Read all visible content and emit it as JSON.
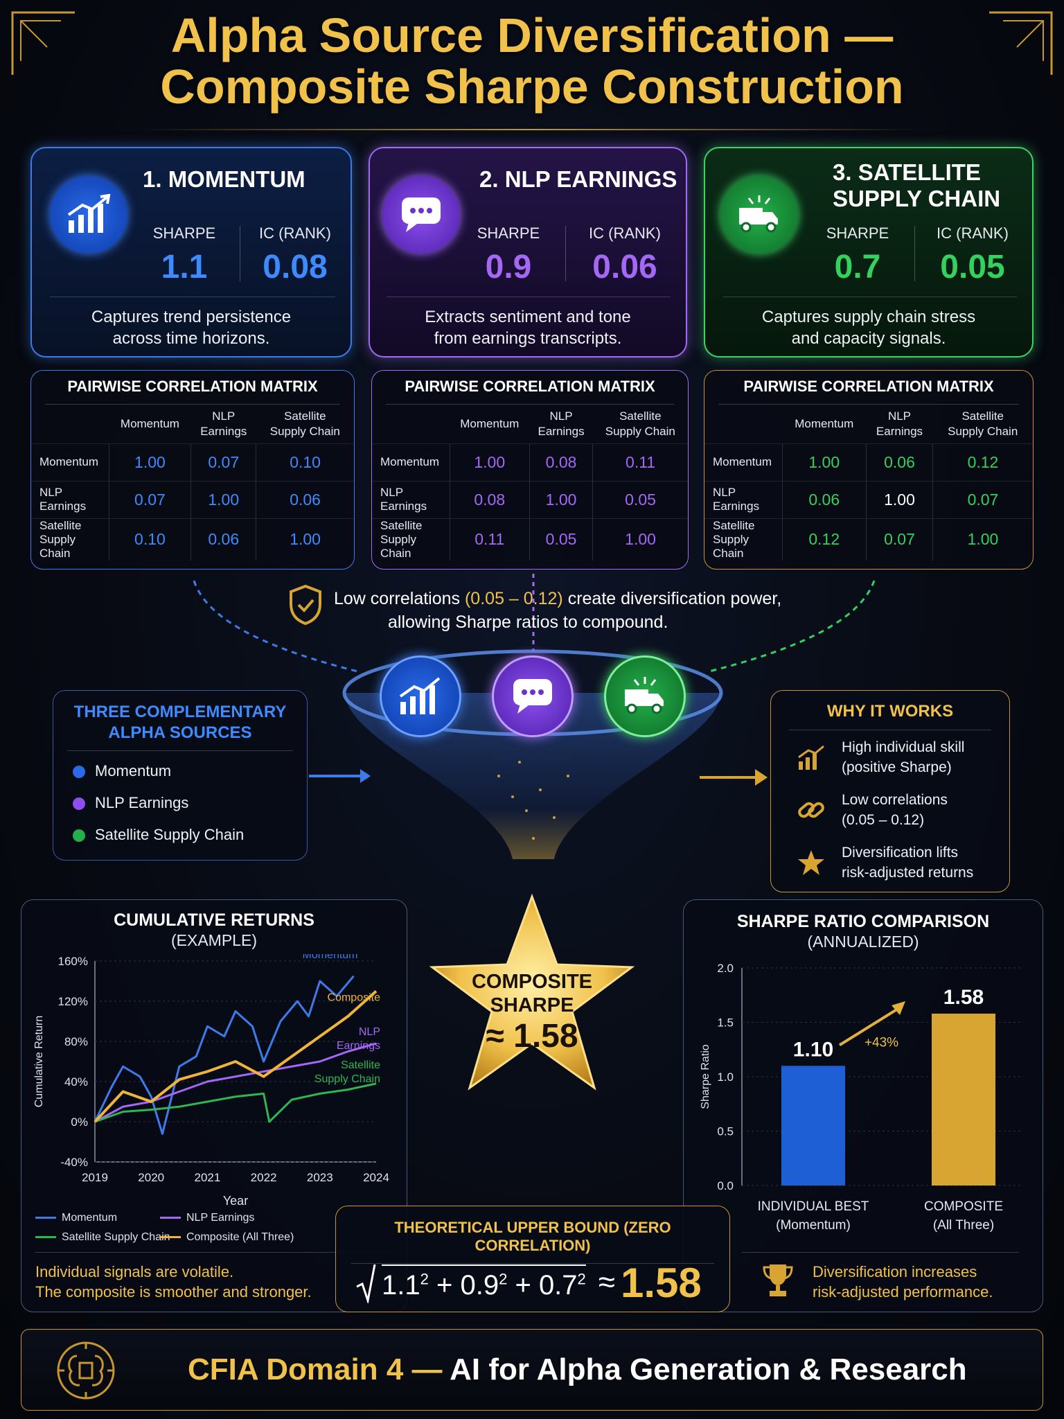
{
  "title": {
    "line1": "Alpha Source Diversification —",
    "line2": "Composite Sharpe Construction"
  },
  "sources": [
    {
      "title_line1": "1. MOMENTUM",
      "title_line2": "",
      "sharpe_label": "SHARPE",
      "ic_label": "IC (RANK)",
      "sharpe": "1.1",
      "ic": "0.08",
      "desc_line1": "Captures trend persistence",
      "desc_line2": "across time horizons.",
      "icon": "chart-up-icon",
      "color": "#3d8bff"
    },
    {
      "title_line1": "2. NLP EARNINGS",
      "title_line2": "",
      "sharpe_label": "SHARPE",
      "ic_label": "IC (RANK)",
      "sharpe": "0.9",
      "ic": "0.06",
      "desc_line1": "Extracts sentiment and tone",
      "desc_line2": "from earnings transcripts.",
      "icon": "chat-bubble-icon",
      "color": "#a468f5"
    },
    {
      "title_line1": "3. SATELLITE",
      "title_line2": "SUPPLY CHAIN",
      "sharpe_label": "SHARPE",
      "ic_label": "IC (RANK)",
      "sharpe": "0.7",
      "ic": "0.05",
      "desc_line1": "Captures supply chain stress",
      "desc_line2": "and capacity signals.",
      "icon": "truck-icon",
      "color": "#35d15e"
    }
  ],
  "matrix": {
    "title": "PAIRWISE CORRELATION MATRIX",
    "col_headers": [
      [
        "Momentum",
        ""
      ],
      [
        "NLP",
        "Earnings"
      ],
      [
        "Satellite",
        "Supply Chain"
      ]
    ],
    "row_labels": [
      [
        "Momentum",
        ""
      ],
      [
        "NLP",
        "Earnings"
      ],
      [
        "Satellite",
        "Supply Chain"
      ]
    ],
    "tables": [
      [
        [
          "1.00",
          "0.07",
          "0.10"
        ],
        [
          "0.07",
          "1.00",
          "0.06"
        ],
        [
          "0.10",
          "0.06",
          "1.00"
        ]
      ],
      [
        [
          "1.00",
          "0.08",
          "0.11"
        ],
        [
          "0.08",
          "1.00",
          "0.05"
        ],
        [
          "0.11",
          "0.05",
          "1.00"
        ]
      ],
      [
        [
          "1.00",
          "0.06",
          "0.12"
        ],
        [
          "0.06",
          "1.00",
          "0.07"
        ],
        [
          "0.12",
          "0.07",
          "1.00"
        ]
      ]
    ]
  },
  "callout": {
    "pre": "Low correlations ",
    "range": "(0.05 – 0.12)",
    "post": " create diversification power,",
    "line2": "allowing Sharpe ratios to compound."
  },
  "three_sources": {
    "title_line1": "THREE COMPLEMENTARY",
    "title_line2": "ALPHA SOURCES",
    "items": [
      "Momentum",
      "NLP Earnings",
      "Satellite Supply Chain"
    ]
  },
  "why": {
    "title": "WHY IT WORKS",
    "items": [
      {
        "line1": "High individual skill",
        "line2": "(positive Sharpe)",
        "icon": "chart-up-icon"
      },
      {
        "line1": "Low correlations",
        "line2": "(0.05 – 0.12)",
        "icon": "link-icon"
      },
      {
        "line1": "Diversification lifts",
        "line2": "risk-adjusted returns",
        "icon": "star-icon"
      }
    ]
  },
  "composite": {
    "line1": "COMPOSITE",
    "line2": "SHARPE",
    "value": "≈ 1.58"
  },
  "bound": {
    "title": "THEORETICAL UPPER BOUND (ZERO CORRELATION)",
    "a": "1.1",
    "b": "0.9",
    "c": "0.7",
    "exp": "2",
    "plus": "+",
    "approx": "≈",
    "result": "1.58"
  },
  "cum_note": {
    "line1": "Individual signals are volatile.",
    "line2": "The composite is smoother and stronger."
  },
  "bar_note": {
    "line1": "Diversification increases",
    "line2": "risk-adjusted performance."
  },
  "footer": {
    "pre": "CFIA Domain 4 —",
    "post": " AI for Alpha Generation & Research"
  },
  "chart_data": [
    {
      "type": "line",
      "title": "CUMULATIVE RETURNS",
      "subtitle": "(EXAMPLE)",
      "xlabel": "Year",
      "ylabel": "Cumulative Return",
      "xlim": [
        2019,
        2024
      ],
      "ylim": [
        -40,
        160
      ],
      "xticks": [
        "2019",
        "2020",
        "2021",
        "2022",
        "2023",
        "2024"
      ],
      "yticks": [
        "-40%",
        "0%",
        "40%",
        "80%",
        "120%",
        "160%"
      ],
      "legend": [
        "Momentum",
        "NLP Earnings",
        "Satellite Supply Chain",
        "Composite (All Three)"
      ],
      "series": [
        {
          "name": "Momentum",
          "label_lines": [
            "Momentum"
          ],
          "color": "#3d7bea",
          "x": [
            2019,
            2019.3,
            2019.5,
            2019.8,
            2020,
            2020.2,
            2020.5,
            2020.8,
            2021,
            2021.3,
            2021.5,
            2021.8,
            2022,
            2022.3,
            2022.6,
            2022.8,
            2023,
            2023.3,
            2023.6
          ],
          "y": [
            0,
            35,
            55,
            45,
            25,
            -12,
            55,
            65,
            95,
            85,
            110,
            95,
            60,
            100,
            120,
            105,
            140,
            125,
            145
          ]
        },
        {
          "name": "NLP Earnings",
          "label_lines": [
            "NLP",
            "Earnings"
          ],
          "color": "#a468f5",
          "x": [
            2019,
            2019.5,
            2020,
            2020.5,
            2021,
            2021.5,
            2022,
            2022.5,
            2023,
            2023.5,
            2024
          ],
          "y": [
            0,
            15,
            20,
            30,
            40,
            45,
            50,
            55,
            60,
            70,
            78
          ]
        },
        {
          "name": "Satellite Supply Chain",
          "label_lines": [
            "Satellite",
            "Supply Chain"
          ],
          "color": "#2fb552",
          "x": [
            2019,
            2019.5,
            2020,
            2020.5,
            2021,
            2021.5,
            2022,
            2022.1,
            2022.5,
            2023,
            2023.5,
            2024
          ],
          "y": [
            0,
            10,
            12,
            15,
            20,
            25,
            28,
            0,
            22,
            28,
            32,
            38
          ]
        },
        {
          "name": "Composite (All Three)",
          "label_lines": [
            "Composite"
          ],
          "color": "#f0b43a",
          "x": [
            2019,
            2019.5,
            2020,
            2020.5,
            2021,
            2021.5,
            2022,
            2022.5,
            2023,
            2023.5,
            2024
          ],
          "y": [
            0,
            30,
            20,
            42,
            50,
            60,
            45,
            65,
            85,
            105,
            130
          ]
        }
      ]
    },
    {
      "type": "bar",
      "title": "SHARPE RATIO COMPARISON",
      "subtitle": "(ANNUALIZED)",
      "ylabel": "Sharpe Ratio",
      "ylim": [
        0,
        2.0
      ],
      "yticks": [
        "0.0",
        "0.5",
        "1.0",
        "1.5",
        "2.0"
      ],
      "categories": [
        [
          "INDIVIDUAL BEST",
          "(Momentum)"
        ],
        [
          "COMPOSITE",
          "(All Three)"
        ]
      ],
      "values": [
        1.1,
        1.58
      ],
      "value_labels": [
        "1.10",
        "1.58"
      ],
      "colors": [
        "#1f5fd6",
        "#d8a432"
      ],
      "annotation": "+43%"
    }
  ]
}
